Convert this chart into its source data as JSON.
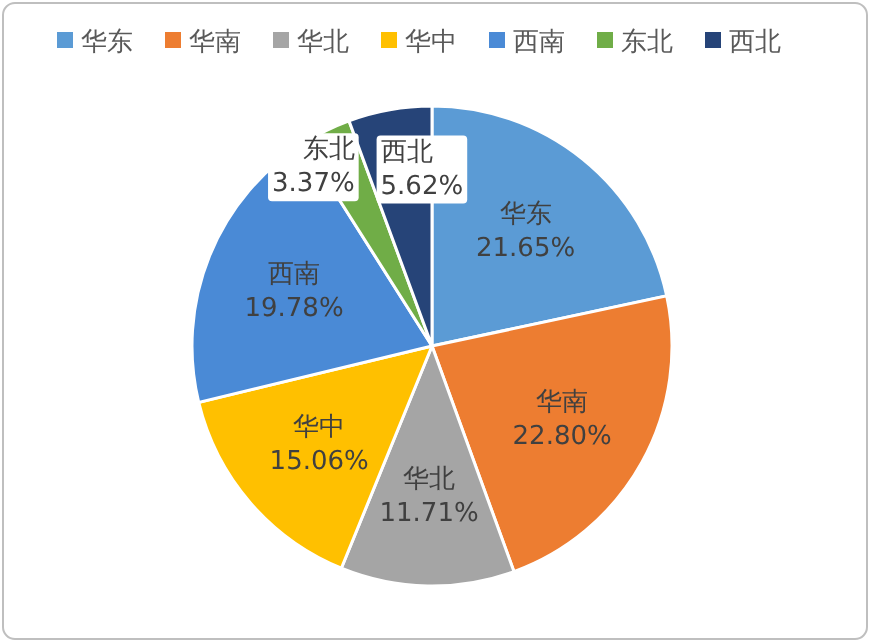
{
  "chart_data": {
    "type": "pie",
    "categories": [
      "华东",
      "华南",
      "华北",
      "华中",
      "西南",
      "东北",
      "西北"
    ],
    "values": [
      21.65,
      22.8,
      11.71,
      15.06,
      19.78,
      3.37,
      5.62
    ],
    "colors": [
      "#5b9bd5",
      "#ed7d31",
      "#a5a5a5",
      "#ffc000",
      "#4a8ad6",
      "#70ad47",
      "#264478"
    ],
    "value_labels": [
      "21.65%",
      "22.80%",
      "11.71%",
      "15.06%",
      "19.78%",
      "3.37%",
      "5.62%"
    ],
    "legend": "top"
  }
}
